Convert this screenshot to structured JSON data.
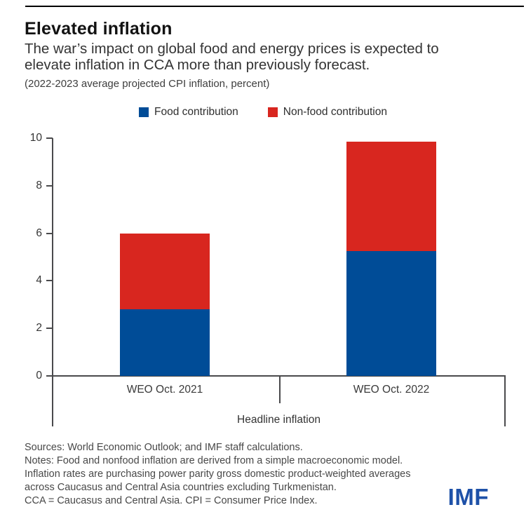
{
  "header": {
    "title": "Elevated inflation",
    "subtitle": "The war’s impact on global food and energy prices is expected to elevate inflation in CCA more than previously forecast.",
    "caption": "(2022-2023 average projected CPI inflation, percent)"
  },
  "chart_data": {
    "type": "bar",
    "stacked": true,
    "categories": [
      "WEO Oct. 2021",
      "WEO Oct. 2022"
    ],
    "series": [
      {
        "name": "Food contribution",
        "color": "#004c97",
        "values": [
          2.8,
          5.25
        ]
      },
      {
        "name": "Non-food contribution",
        "color": "#d8261f",
        "values": [
          3.2,
          4.6
        ]
      }
    ],
    "totals": [
      6.0,
      9.85
    ],
    "xlabel": "Headline inflation",
    "ylabel": "",
    "ylim": [
      0,
      10
    ],
    "yticks": [
      0,
      2,
      4,
      6,
      8,
      10
    ],
    "grid": false,
    "legend_position": "top"
  },
  "footer": {
    "lines": [
      "Sources: World Economic Outlook; and IMF staff calculations.",
      "Notes: Food and nonfood inflation are derived from a simple macroeconomic model.",
      "Inflation rates are purchasing power parity gross domestic product-weighted averages",
      "across Caucasus and Central Asia countries excluding Turkmenistan.",
      "CCA = Caucasus and Central Asia. CPI = Consumer Price Index."
    ],
    "logo": "IMF",
    "logo_color": "#1e51a8"
  }
}
